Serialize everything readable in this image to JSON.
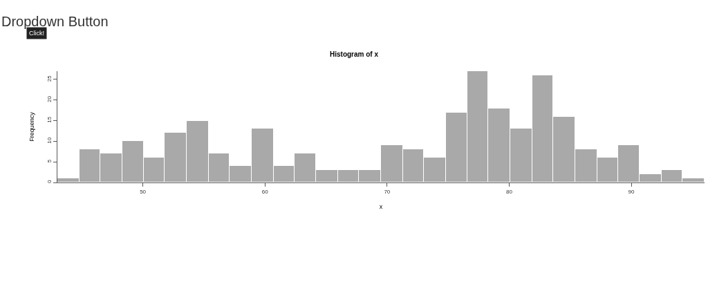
{
  "chart_data": {
    "type": "histogram",
    "title": "Histogram of x",
    "xlabel": "x",
    "ylabel": "Frequency",
    "annotations": [
      "Dropdown Button",
      "Click!"
    ],
    "bins": [
      43.0,
      44.8,
      46.5,
      48.3,
      50.1,
      51.8,
      53.6,
      55.4,
      57.1,
      58.9,
      60.7,
      62.4,
      64.2,
      66.0,
      67.7,
      69.5,
      71.3,
      73.0,
      74.8,
      76.6,
      78.3,
      80.1,
      81.9,
      83.6,
      85.4,
      87.2,
      88.9,
      90.7,
      92.5,
      94.2,
      96.0
    ],
    "values": [
      1,
      8,
      7,
      10,
      6,
      12,
      15,
      7,
      4,
      13,
      4,
      7,
      3,
      3,
      3,
      9,
      8,
      6,
      17,
      27,
      18,
      13,
      26,
      16,
      8,
      6,
      9,
      2,
      3,
      1
    ],
    "color": "#a9a9a9",
    "xlim": [
      43,
      96
    ],
    "xticks": [
      50,
      60,
      70,
      80,
      90
    ],
    "ylim": [
      0,
      27
    ],
    "yticks": [
      0,
      5,
      10,
      15,
      20,
      25
    ]
  }
}
